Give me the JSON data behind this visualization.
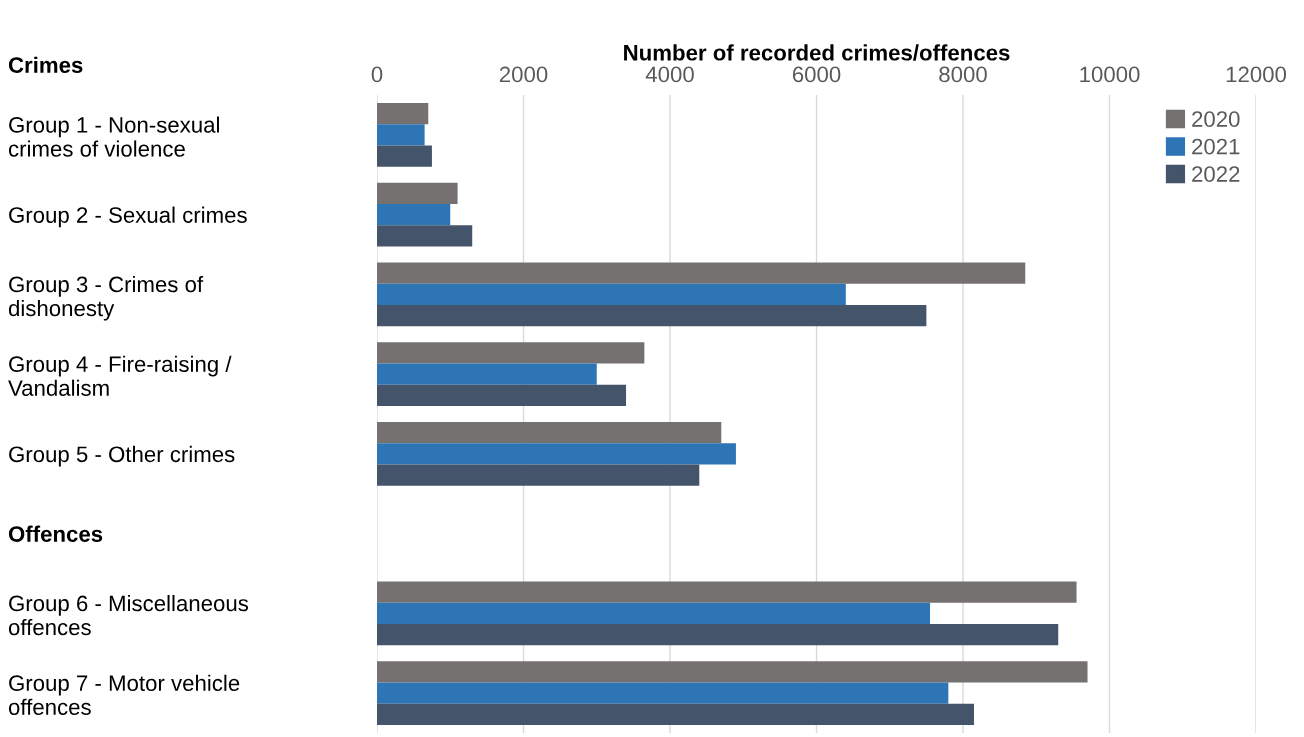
{
  "chart_data": {
    "type": "bar",
    "orientation": "horizontal",
    "xlabel": "Number of recorded crimes/offences",
    "categories": [
      "Group 1 - Non-sexual\ncrimes of violence",
      "Group 2 - Sexual crimes",
      "Group 3 - Crimes of\ndishonesty",
      "Group 4 - Fire-raising /\nVandalism",
      "Group 5 - Other crimes",
      "Offences",
      "Group 6 - Miscellaneous\noffences",
      "Group 7 - Motor vehicle\noffences"
    ],
    "series": [
      {
        "name": "2020",
        "color": "#767171",
        "values": [
          700,
          1100,
          8850,
          3650,
          4700,
          null,
          9550,
          9700
        ]
      },
      {
        "name": "2021",
        "color": "#2e75b6",
        "values": [
          650,
          1000,
          6400,
          3000,
          4900,
          null,
          7550,
          7800
        ]
      },
      {
        "name": "2022",
        "color": "#44546a",
        "values": [
          750,
          1300,
          7500,
          3400,
          4400,
          null,
          9300,
          8150
        ]
      }
    ],
    "xlim": [
      0,
      12000
    ],
    "xticks": [
      0,
      2000,
      4000,
      6000,
      8000,
      10000,
      12000
    ],
    "grid": "x",
    "legend": "top right",
    "annotations": [
      "Crimes"
    ]
  }
}
